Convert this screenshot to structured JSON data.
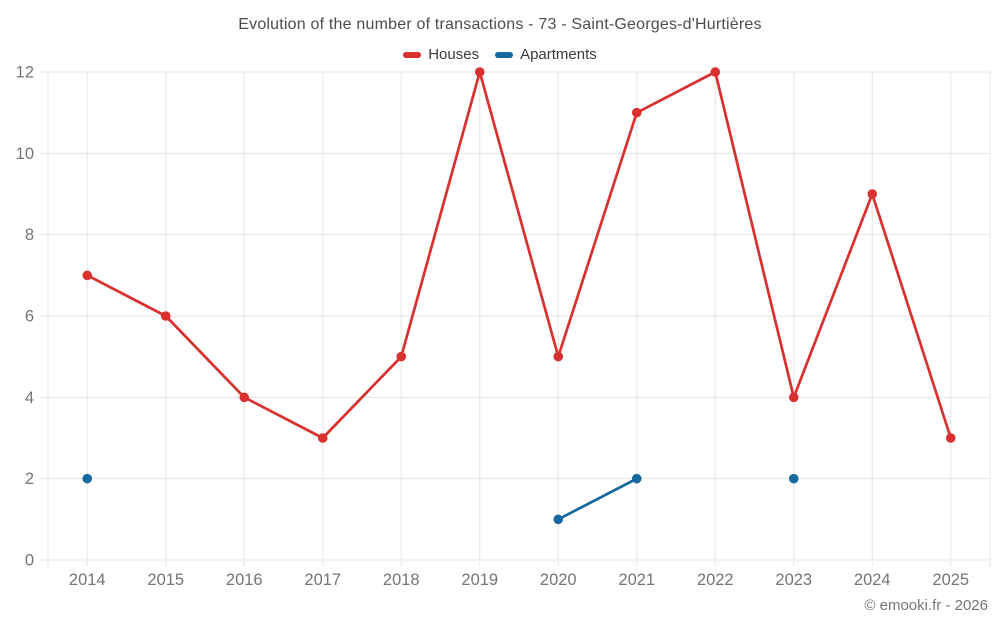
{
  "title": "Evolution of the number of transactions - 73 - Saint-Georges-d'Hurtières",
  "footer": "© emooki.fr - 2026",
  "colors": {
    "houses": "#d93030",
    "apartments": "#15699f",
    "grid": "#e6e6e6",
    "axis_text": "#757575",
    "title_text": "#4d4d4d"
  },
  "chart_data": {
    "type": "line",
    "title": "Evolution of the number of transactions - 73 - Saint-Georges-d'Hurtières",
    "categories": [
      "2014",
      "2015",
      "2016",
      "2017",
      "2018",
      "2019",
      "2020",
      "2021",
      "2022",
      "2023",
      "2024",
      "2025"
    ],
    "series": [
      {
        "name": "Houses",
        "color": "#d93030",
        "values": [
          7,
          6,
          4,
          3,
          5,
          12,
          5,
          11,
          12,
          4,
          9,
          3
        ]
      },
      {
        "name": "Apartments",
        "color": "#15699f",
        "values": [
          2,
          null,
          null,
          null,
          null,
          null,
          1,
          2,
          null,
          2,
          null,
          null
        ]
      }
    ],
    "xlabel": "",
    "ylabel": "",
    "ylim": [
      0,
      12
    ],
    "yticks": [
      0,
      2,
      4,
      6,
      8,
      10,
      12
    ],
    "grid": true,
    "legend_position": "top"
  }
}
